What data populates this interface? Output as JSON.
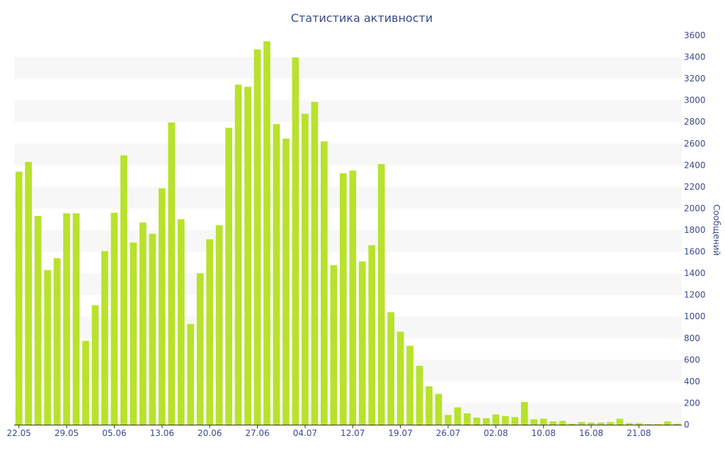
{
  "chart_data": {
    "type": "bar",
    "title": "Статистика активности",
    "ylabel": "Сообщений",
    "xlabel": "",
    "ylim": [
      0,
      3600
    ],
    "yticks": [
      0,
      200,
      400,
      600,
      800,
      1000,
      1200,
      1400,
      1600,
      1800,
      2000,
      2200,
      2400,
      2600,
      2800,
      3000,
      3200,
      3400,
      3600
    ],
    "y_axis_side": "right",
    "bands": "alternating horizontal bands",
    "colors": {
      "bar": "#b8e22c",
      "band": "#f7f7f7",
      "text": "#3a4b8a",
      "axis": "#333333"
    },
    "x_tick_labels": [
      {
        "index": 0,
        "label": "22.05"
      },
      {
        "index": 5,
        "label": "29.05"
      },
      {
        "index": 10,
        "label": "05.06"
      },
      {
        "index": 15,
        "label": "13.06"
      },
      {
        "index": 20,
        "label": "20.06"
      },
      {
        "index": 25,
        "label": "27.06"
      },
      {
        "index": 30,
        "label": "04.07"
      },
      {
        "index": 35,
        "label": "12.07"
      },
      {
        "index": 40,
        "label": "19.07"
      },
      {
        "index": 45,
        "label": "26.07"
      },
      {
        "index": 50,
        "label": "02.08"
      },
      {
        "index": 55,
        "label": "10.08"
      },
      {
        "index": 60,
        "label": "16.08"
      },
      {
        "index": 65,
        "label": "21.08"
      }
    ],
    "values": [
      2340,
      2430,
      1930,
      1430,
      1540,
      1955,
      1955,
      775,
      1105,
      1605,
      1960,
      2490,
      1685,
      1870,
      1765,
      2185,
      2795,
      1900,
      930,
      1400,
      1715,
      1845,
      2745,
      3145,
      3125,
      3470,
      3545,
      2780,
      2645,
      3395,
      2875,
      2985,
      2620,
      1475,
      2325,
      2350,
      1510,
      1660,
      2410,
      1040,
      860,
      730,
      545,
      355,
      285,
      90,
      160,
      105,
      65,
      60,
      95,
      80,
      70,
      210,
      50,
      55,
      30,
      35,
      10,
      25,
      20,
      20,
      25,
      55,
      15,
      15,
      5,
      5,
      30,
      10
    ]
  }
}
